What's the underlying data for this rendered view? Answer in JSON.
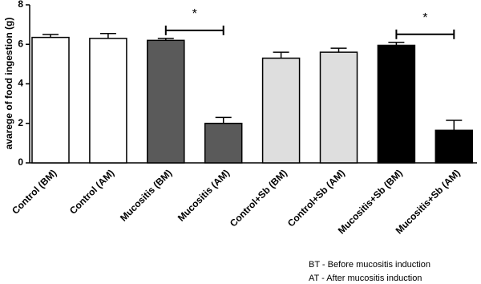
{
  "chart_data": {
    "type": "bar",
    "y_label": "avarege of food ingestion (g)",
    "categories": [
      "Control (BM)",
      "Control (AM)",
      "Mucositis (BM)",
      "Mucositis (AM)",
      "Control+Sb (BM)",
      "Control+Sb (AM)",
      "Mucositis+Sb (BM)",
      "Mucositis+Sb (AM)"
    ],
    "values": [
      6.35,
      6.3,
      6.2,
      2.0,
      5.3,
      5.6,
      5.95,
      1.65
    ],
    "errors": [
      0.15,
      0.25,
      0.1,
      0.3,
      0.3,
      0.2,
      0.15,
      0.5
    ],
    "colors": [
      "#ffffff",
      "#ffffff",
      "#5a5a5a",
      "#5a5a5a",
      "#dedede",
      "#dedede",
      "#000000",
      "#000000"
    ],
    "ylim": [
      0,
      8
    ],
    "yticks": [
      0,
      2,
      4,
      6,
      8
    ],
    "annotations": [
      {
        "text": "*",
        "from": 2,
        "to": 3
      },
      {
        "text": "*",
        "from": 6,
        "to": 7
      }
    ],
    "notes": [
      "BT - Before  mucositis induction",
      "AT - After mucositis induction"
    ]
  }
}
